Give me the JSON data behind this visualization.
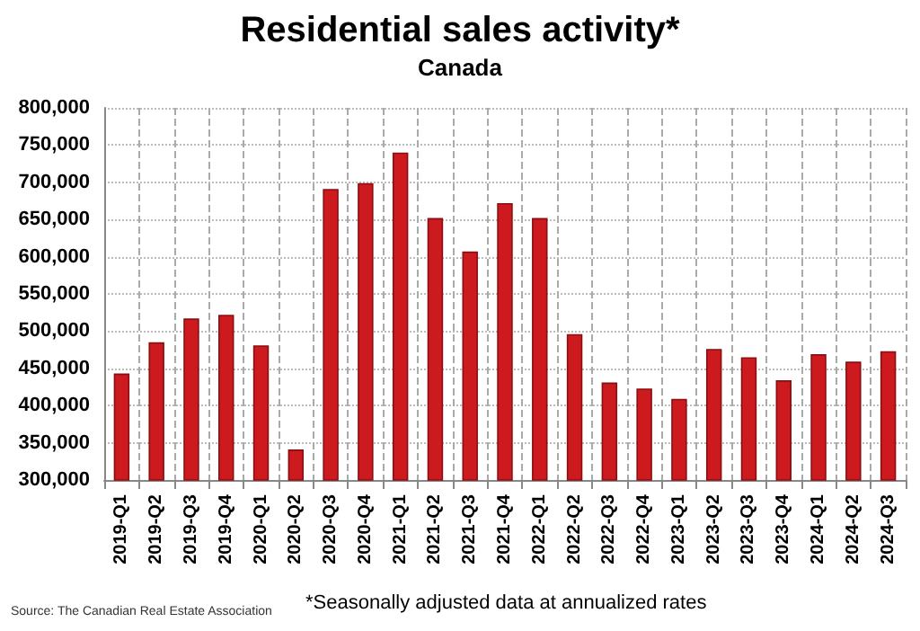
{
  "chart_data": {
    "type": "bar",
    "title": "Residential sales activity*",
    "subtitle": "Canada",
    "categories": [
      "2019-Q1",
      "2019-Q2",
      "2019-Q3",
      "2019-Q4",
      "2020-Q1",
      "2020-Q2",
      "2020-Q3",
      "2020-Q4",
      "2021-Q1",
      "2021-Q2",
      "2021-Q3",
      "2021-Q4",
      "2022-Q1",
      "2022-Q2",
      "2022-Q3",
      "2022-Q4",
      "2023-Q1",
      "2023-Q2",
      "2023-Q3",
      "2023-Q4",
      "2024-Q1",
      "2024-Q2",
      "2024-Q3"
    ],
    "values": [
      443000,
      485000,
      517000,
      522000,
      481000,
      341000,
      691000,
      699000,
      740000,
      652000,
      607000,
      672000,
      652000,
      496000,
      431000,
      423000,
      409000,
      476000,
      465000,
      434000,
      469000,
      459000,
      473000
    ],
    "color": "#cc1a1f",
    "ylim": [
      300000,
      800000
    ],
    "yticks": [
      {
        "value": 300000,
        "label": "300,000"
      },
      {
        "value": 350000,
        "label": "350,000"
      },
      {
        "value": 400000,
        "label": "400,000"
      },
      {
        "value": 450000,
        "label": "450,000"
      },
      {
        "value": 500000,
        "label": "500,000"
      },
      {
        "value": 550000,
        "label": "550,000"
      },
      {
        "value": 600000,
        "label": "600,000"
      },
      {
        "value": 650000,
        "label": "650,000"
      },
      {
        "value": 700000,
        "label": "700,000"
      },
      {
        "value": 750000,
        "label": "750,000"
      },
      {
        "value": 800000,
        "label": "800,000"
      }
    ],
    "grid": true,
    "annotations": [
      "*Seasonally adjusted data at annualized rates",
      "Source: The Canadian Real Estate Association"
    ]
  }
}
